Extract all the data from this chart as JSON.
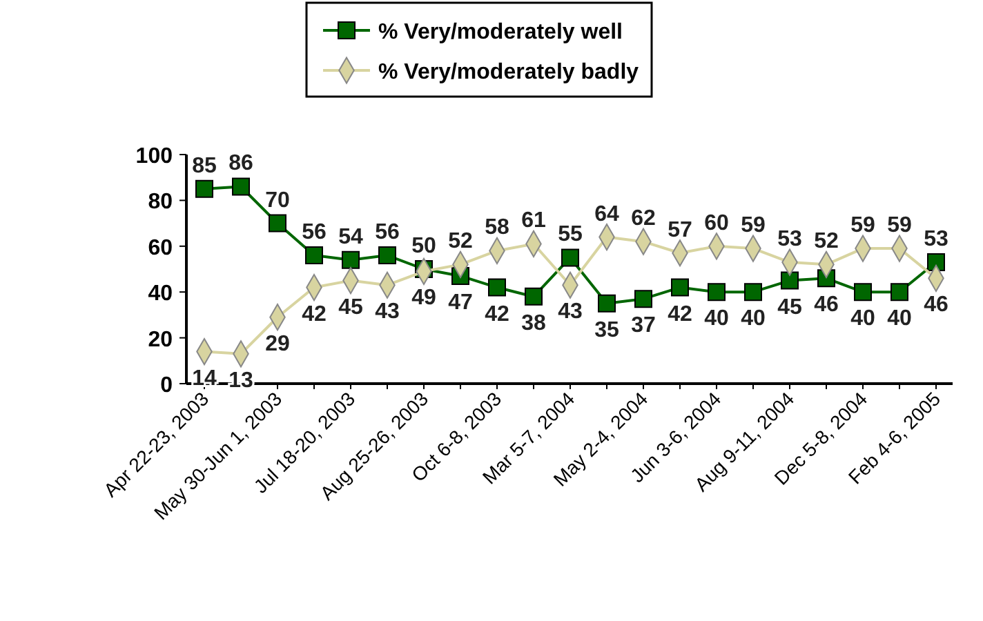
{
  "chart_data": {
    "type": "line",
    "categories": [
      "Apr 22-23, 2003",
      null,
      "May 30-Jun 1, 2003",
      null,
      "Jul 18-20, 2003",
      null,
      "Aug 25-26, 2003",
      null,
      "Oct 6-8, 2003",
      null,
      "Mar 5-7, 2004",
      null,
      "May 2-4, 2004",
      null,
      "Jun 3-6, 2004",
      null,
      "Aug 9-11, 2004",
      null,
      "Dec 5-8, 2004",
      null,
      "Feb 4-6, 2005"
    ],
    "series": [
      {
        "name": "% Very/moderately well",
        "color": "#006600",
        "marker": "square",
        "values": [
          85,
          86,
          70,
          56,
          54,
          56,
          50,
          47,
          42,
          38,
          55,
          35,
          37,
          42,
          40,
          40,
          45,
          46,
          40,
          40,
          53
        ]
      },
      {
        "name": "% Very/moderately badly",
        "color": "#d8d4a0",
        "marker": "diamond",
        "values": [
          14,
          13,
          29,
          42,
          45,
          43,
          49,
          52,
          58,
          61,
          43,
          64,
          62,
          57,
          60,
          59,
          53,
          52,
          59,
          59,
          46
        ]
      }
    ],
    "ylim": [
      0,
      100
    ],
    "yticks": [
      0,
      20,
      40,
      60,
      80,
      100
    ],
    "data_labels": true,
    "legend": "top",
    "grid": false
  }
}
